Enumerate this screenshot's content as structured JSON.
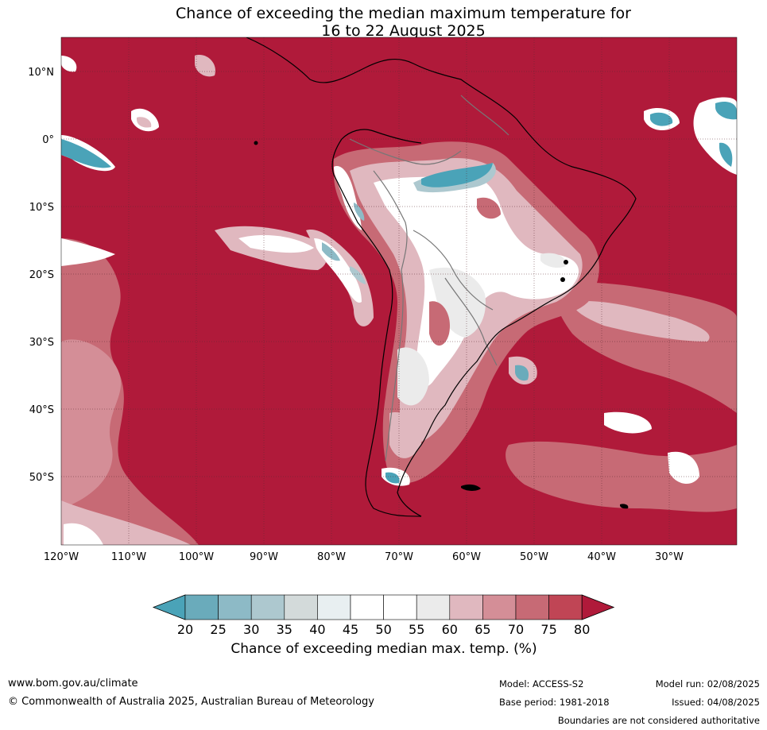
{
  "title": {
    "line1": "Chance of exceeding the median maximum temperature for",
    "line2": "16 to 22 August 2025"
  },
  "map": {
    "region": "South America",
    "lat_ticks": [
      "10°N",
      "0°",
      "10°S",
      "20°S",
      "30°S",
      "40°S",
      "50°S"
    ],
    "lon_ticks": [
      "120°W",
      "110°W",
      "100°W",
      "90°W",
      "80°W",
      "70°W",
      "60°W",
      "50°W",
      "40°W",
      "30°W"
    ],
    "lat_range": [
      -60,
      15
    ],
    "lon_range": [
      -120,
      -20
    ]
  },
  "colorbar": {
    "ticks": [
      "20",
      "25",
      "30",
      "35",
      "40",
      "45",
      "50",
      "55",
      "60",
      "65",
      "70",
      "75",
      "80"
    ],
    "colors": [
      "#4aa3b8",
      "#6aabbb",
      "#8dbac6",
      "#adc8cf",
      "#d3dada",
      "#e8eff1",
      "#ffffff",
      "#ffffff",
      "#ebebeb",
      "#e0b8bf",
      "#d48e97",
      "#c76a75",
      "#c04555",
      "#b01a3a"
    ],
    "label": "Chance of exceeding median max. temp. (%)"
  },
  "footer": {
    "url": "www.bom.gov.au/climate",
    "copyright": "© Commonwealth of Australia 2025, Australian Bureau of Meteorology",
    "model": "Model: ACCESS-S2",
    "base_period": "Base period: 1981-2018",
    "model_run": "Model run: 02/08/2025",
    "issued": "Issued: 04/08/2025",
    "disclaimer": "Boundaries are not considered authoritative"
  }
}
